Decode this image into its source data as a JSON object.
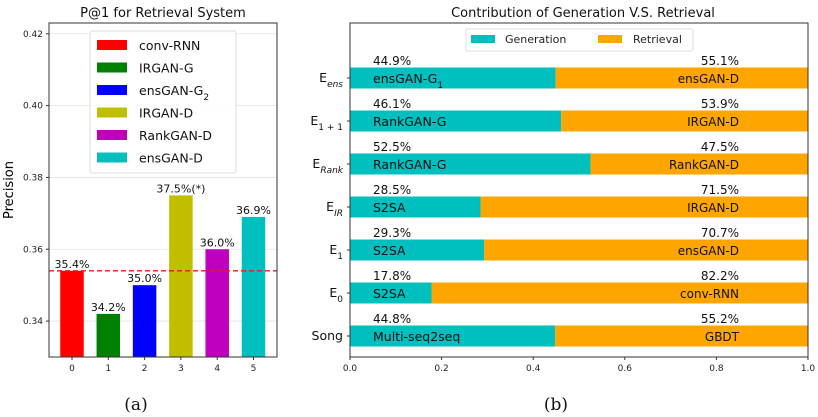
{
  "chart_data": [
    {
      "type": "bar",
      "title": "P@1 for Retrieval System",
      "caption": "(a)",
      "xlabel": "",
      "ylabel": "Precision",
      "categories": [
        "0",
        "1",
        "2",
        "3",
        "4",
        "5"
      ],
      "yticks": [
        "0.34",
        "0.36",
        "0.38",
        "0.40",
        "0.42"
      ],
      "ylim": [
        0.33,
        0.423
      ],
      "grid": "horizontal",
      "legend_position": "top-center",
      "series": [
        {
          "name": "conv-RNN",
          "value": 0.354,
          "label": "35.4%",
          "color": "#ff0000"
        },
        {
          "name": "IRGAN-G",
          "value": 0.342,
          "label": "34.2%",
          "color": "#008000"
        },
        {
          "name": "ensGAN-G",
          "name_sub": "2",
          "value": 0.35,
          "label": "35.0%",
          "color": "#0000ff"
        },
        {
          "name": "IRGAN-D",
          "value": 0.375,
          "label": "37.5%(*)",
          "color": "#bfbf00"
        },
        {
          "name": "RankGAN-D",
          "value": 0.36,
          "label": "36.0%",
          "color": "#bf00bf"
        },
        {
          "name": "ensGAN-D",
          "value": 0.369,
          "label": "36.9%",
          "color": "#00bfbf"
        }
      ],
      "reference_line": {
        "value": 0.354,
        "style": "dashed",
        "color": "#e41a1c"
      }
    },
    {
      "type": "bar",
      "orientation": "horizontal-stacked",
      "title": "Contribution of Generation V.S. Retrieval",
      "caption": "(b)",
      "xlim": [
        0,
        1
      ],
      "xticks": [
        "0.0",
        "0.2",
        "0.4",
        "0.6",
        "0.8",
        "1.0"
      ],
      "legend_position": "top-center",
      "series_names": [
        "Generation",
        "Retrieval"
      ],
      "colors": {
        "Generation": "#00bfbf",
        "Retrieval": "#ffa500"
      },
      "rows": [
        {
          "label": "E",
          "label_sub": "ens",
          "sub_italic": true,
          "generation": 0.449,
          "retrieval": 0.551,
          "gen_pct": "44.9%",
          "ret_pct": "55.1%",
          "gen_model": "ensGAN-G",
          "gen_model_sub": "1",
          "ret_model": "ensGAN-D"
        },
        {
          "label": "E",
          "label_sub": "1 + 1",
          "sub_italic": false,
          "generation": 0.461,
          "retrieval": 0.539,
          "gen_pct": "46.1%",
          "ret_pct": "53.9%",
          "gen_model": "RankGAN-G",
          "gen_model_sub": "",
          "ret_model": "IRGAN-D"
        },
        {
          "label": "E",
          "label_sub": "Rank",
          "sub_italic": true,
          "generation": 0.525,
          "retrieval": 0.475,
          "gen_pct": "52.5%",
          "ret_pct": "47.5%",
          "gen_model": "RankGAN-G",
          "gen_model_sub": "",
          "ret_model": "RankGAN-D"
        },
        {
          "label": "E",
          "label_sub": "IR",
          "sub_italic": true,
          "generation": 0.285,
          "retrieval": 0.715,
          "gen_pct": "28.5%",
          "ret_pct": "71.5%",
          "gen_model": "S2SA",
          "gen_model_sub": "",
          "ret_model": "IRGAN-D"
        },
        {
          "label": "E",
          "label_sub": "1",
          "sub_italic": false,
          "generation": 0.293,
          "retrieval": 0.707,
          "gen_pct": "29.3%",
          "ret_pct": "70.7%",
          "gen_model": "S2SA",
          "gen_model_sub": "",
          "ret_model": "ensGAN-D"
        },
        {
          "label": "E",
          "label_sub": "0",
          "sub_italic": false,
          "generation": 0.178,
          "retrieval": 0.822,
          "gen_pct": "17.8%",
          "ret_pct": "82.2%",
          "gen_model": "S2SA",
          "gen_model_sub": "",
          "ret_model": "conv-RNN"
        },
        {
          "label": "Song",
          "label_sub": "",
          "sub_italic": false,
          "generation": 0.448,
          "retrieval": 0.552,
          "gen_pct": "44.8%",
          "ret_pct": "55.2%",
          "gen_model": "Multi-seq2seq",
          "gen_model_sub": "",
          "ret_model": "GBDT"
        }
      ]
    }
  ]
}
